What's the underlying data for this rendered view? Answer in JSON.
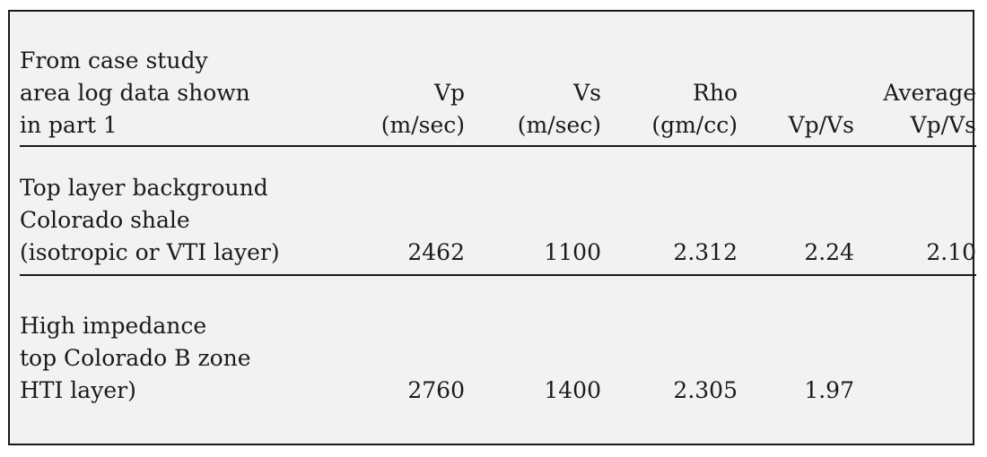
{
  "table": {
    "headers": [
      {
        "label": "From case study\narea log data shown\nin part 1"
      },
      {
        "label": "Vp\n(m/sec)"
      },
      {
        "label": "Vs\n(m/sec)"
      },
      {
        "label": "Rho\n(gm/cc)"
      },
      {
        "label": "Vp/Vs"
      },
      {
        "label": "Average\nVp/Vs"
      }
    ],
    "rows": [
      {
        "label": "Top layer background\nColorado shale\n(isotropic or VTI layer)",
        "vp": "2462",
        "vs": "1100",
        "rho": "2.312",
        "vpvs": "2.24",
        "avg_vpvs": "2.10"
      },
      {
        "label": "High impedance\ntop Colorado B zone\nHTI layer)",
        "vp": "2760",
        "vs": "1400",
        "rho": "2.305",
        "vpvs": "1.97",
        "avg_vpvs": ""
      }
    ]
  }
}
